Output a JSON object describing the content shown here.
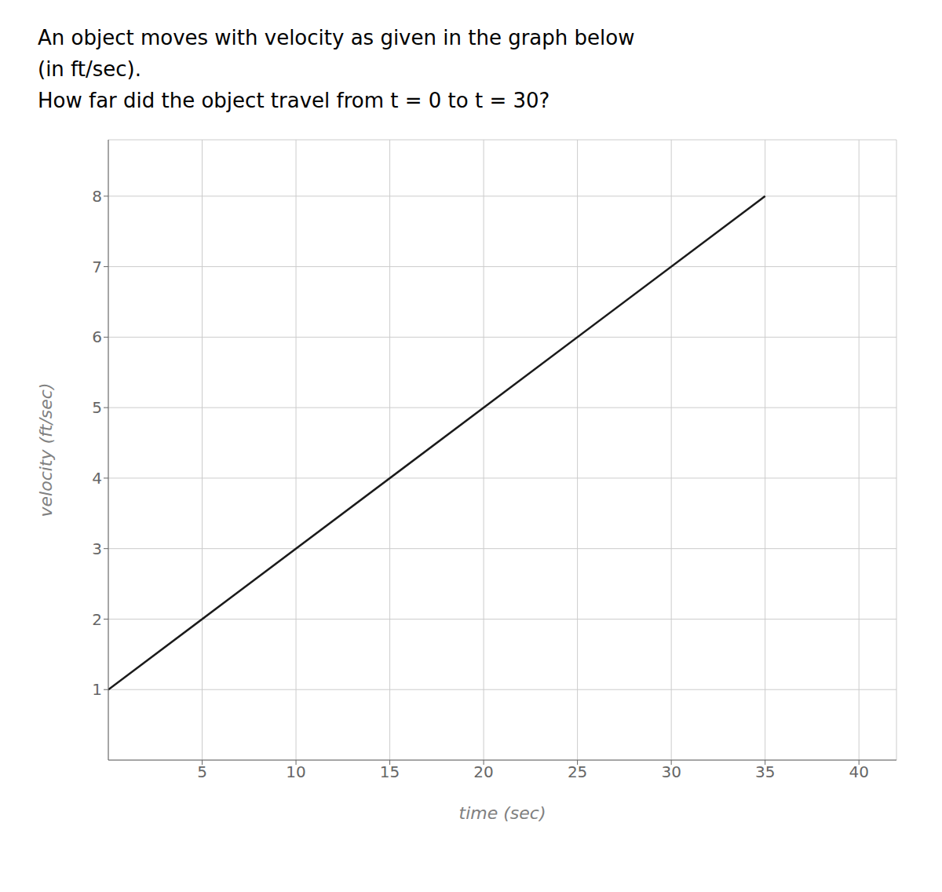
{
  "chart_data": {
    "type": "line",
    "title": "An object moves with velocity as given in the graph below\n(in ft/sec).\nHow far did the object travel from t = 0 to t = 30?",
    "x_label": "time (sec)",
    "y_label": "velocity (ft/sec)",
    "x": [
      0,
      35
    ],
    "series": [
      {
        "name": "velocity",
        "color": "#1a1a1a",
        "values": [
          1,
          8
        ]
      }
    ],
    "xlim": [
      0,
      42
    ],
    "ylim": [
      0,
      8.8
    ],
    "xticks": [
      5,
      10,
      15,
      20,
      25,
      30,
      35,
      40
    ],
    "yticks": [
      1,
      2,
      3,
      4,
      5,
      6,
      7,
      8
    ],
    "grid": true
  }
}
